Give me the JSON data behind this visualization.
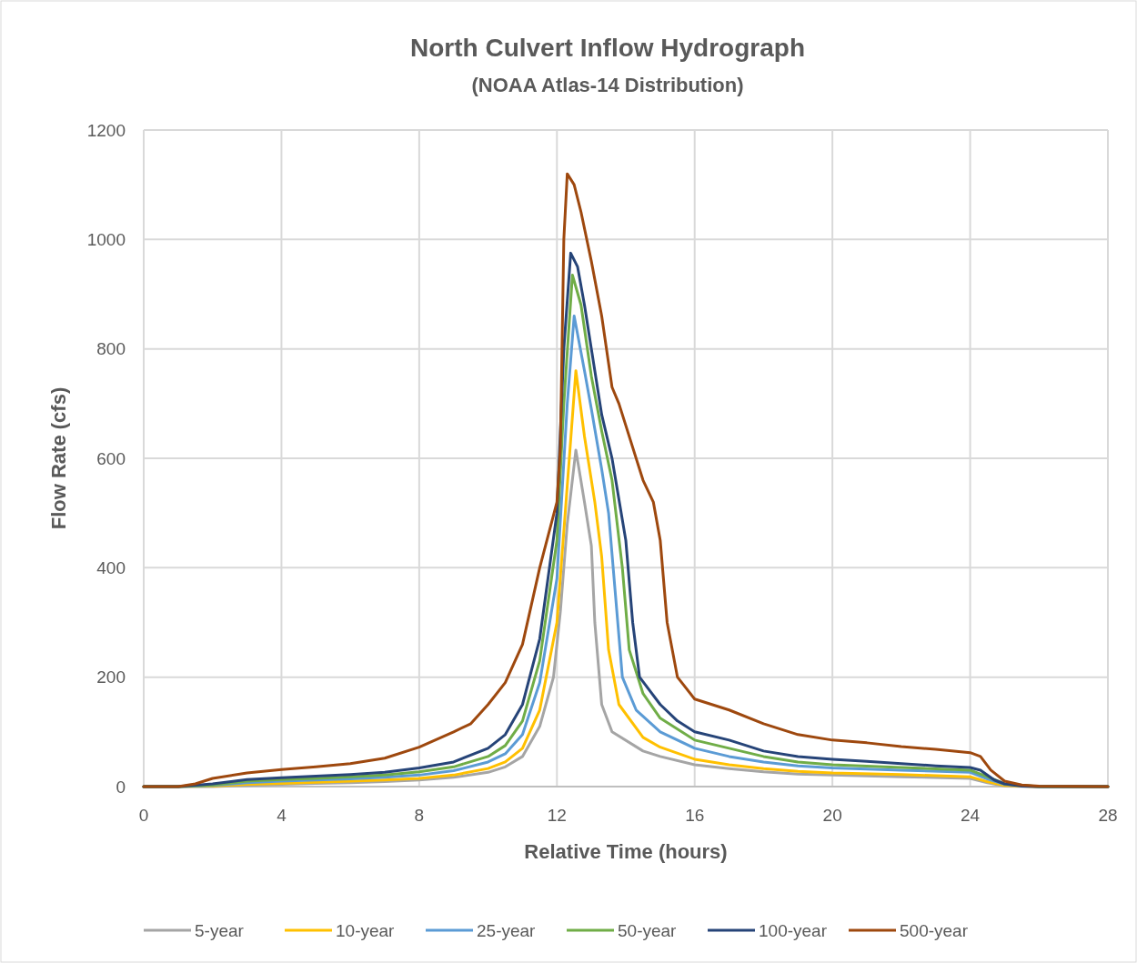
{
  "chart_data": {
    "type": "line",
    "title": "North Culvert Inflow Hydrograph",
    "subtitle": "(NOAA Atlas-14 Distribution)",
    "xlabel": "Relative Time (hours)",
    "ylabel": "Flow Rate (cfs)",
    "xlim": [
      0,
      28
    ],
    "xticks": [
      0,
      4,
      8,
      12,
      16,
      20,
      24,
      28
    ],
    "ylim": [
      0,
      1200
    ],
    "yticks": [
      0,
      200,
      400,
      600,
      800,
      1000,
      1200
    ],
    "grid": true,
    "legend": "bottom",
    "marker": "none",
    "line_style": "solid",
    "series": [
      {
        "name": "5-year",
        "color": "#a5a5a5",
        "x": [
          0,
          2,
          3,
          4,
          5,
          6,
          7,
          8,
          9,
          10,
          10.5,
          11,
          11.5,
          11.9,
          12.1,
          12.3,
          12.55,
          12.8,
          13,
          13.1,
          13.3,
          13.6,
          14.5,
          15,
          16,
          17,
          18,
          19,
          20,
          22,
          24,
          24.5,
          25,
          26,
          28
        ],
        "values": [
          0,
          0,
          2,
          4,
          6,
          7,
          9,
          12,
          17,
          26,
          36,
          55,
          110,
          200,
          320,
          480,
          615,
          520,
          440,
          300,
          150,
          100,
          65,
          55,
          40,
          33,
          27,
          23,
          21,
          18,
          15,
          7,
          1,
          0,
          0
        ]
      },
      {
        "name": "10-year",
        "color": "#ffc000",
        "x": [
          0,
          2,
          3,
          4,
          5,
          6,
          7,
          8,
          9,
          10,
          10.5,
          11,
          11.5,
          12,
          12.3,
          12.55,
          12.8,
          13.1,
          13.3,
          13.5,
          13.8,
          14.5,
          15,
          16,
          17,
          18,
          19,
          20,
          22,
          24,
          24.5,
          25,
          26,
          28
        ],
        "values": [
          0,
          1,
          4,
          6,
          8,
          10,
          12,
          15,
          21,
          33,
          45,
          70,
          140,
          300,
          550,
          760,
          640,
          520,
          420,
          250,
          150,
          90,
          72,
          50,
          40,
          33,
          28,
          25,
          22,
          18,
          9,
          2,
          0,
          0
        ]
      },
      {
        "name": "25-year",
        "color": "#5b9bd5",
        "x": [
          0,
          1,
          2,
          3,
          4,
          5,
          6,
          7,
          8,
          9,
          10,
          10.5,
          11,
          11.5,
          12,
          12.3,
          12.5,
          12.8,
          13,
          13.3,
          13.5,
          13.7,
          13.9,
          14.3,
          15,
          16,
          17,
          18,
          19,
          20,
          22,
          24,
          24.5,
          25,
          26,
          28
        ],
        "values": [
          0,
          0,
          2,
          7,
          10,
          12,
          14,
          17,
          21,
          29,
          45,
          60,
          95,
          190,
          380,
          700,
          860,
          760,
          690,
          580,
          500,
          350,
          200,
          140,
          100,
          70,
          55,
          45,
          38,
          34,
          30,
          26,
          14,
          4,
          0,
          0
        ]
      },
      {
        "name": "50-year",
        "color": "#70ad47",
        "x": [
          0,
          1,
          2,
          3,
          4,
          5,
          6,
          7,
          8,
          9,
          10,
          10.5,
          11,
          11.5,
          12,
          12.2,
          12.45,
          12.7,
          13,
          13.3,
          13.6,
          13.9,
          14.1,
          14.5,
          15,
          16,
          17,
          18,
          19,
          20,
          22,
          24,
          24.5,
          25,
          26,
          28
        ],
        "values": [
          0,
          0,
          3,
          10,
          13,
          15,
          18,
          21,
          27,
          36,
          55,
          75,
          120,
          230,
          450,
          700,
          935,
          880,
          750,
          650,
          560,
          400,
          250,
          170,
          125,
          85,
          70,
          55,
          45,
          40,
          35,
          30,
          18,
          5,
          0,
          0
        ]
      },
      {
        "name": "100-year",
        "color": "#264478",
        "x": [
          0,
          1,
          2,
          3,
          4,
          5,
          6,
          7,
          8,
          9,
          10,
          10.5,
          11,
          11.5,
          12,
          12.2,
          12.4,
          12.6,
          12.8,
          13,
          13.3,
          13.6,
          14,
          14.2,
          14.4,
          15,
          15.5,
          16,
          17,
          18,
          19,
          20,
          21,
          22,
          23,
          24,
          24.3,
          24.7,
          25,
          25.5,
          26,
          28
        ],
        "values": [
          0,
          0,
          5,
          13,
          16,
          19,
          22,
          26,
          34,
          45,
          70,
          95,
          150,
          270,
          500,
          800,
          975,
          950,
          880,
          800,
          680,
          600,
          450,
          300,
          200,
          150,
          120,
          100,
          85,
          65,
          55,
          50,
          46,
          42,
          38,
          35,
          30,
          12,
          5,
          1,
          0,
          0
        ]
      },
      {
        "name": "500-year",
        "color": "#9e480e",
        "x": [
          0,
          1,
          1.5,
          2,
          3,
          4,
          5,
          6,
          7,
          8,
          9,
          9.5,
          10,
          10.5,
          11,
          11.5,
          12,
          12.1,
          12.2,
          12.3,
          12.5,
          12.7,
          13,
          13.3,
          13.6,
          13.8,
          14,
          14.5,
          14.8,
          15,
          15.2,
          15.5,
          16,
          17,
          18,
          19,
          20,
          21,
          22,
          23,
          24,
          24.3,
          24.6,
          25,
          25.5,
          26,
          28
        ],
        "values": [
          0,
          0,
          5,
          15,
          25,
          31,
          36,
          42,
          52,
          72,
          100,
          115,
          150,
          190,
          260,
          400,
          520,
          620,
          1000,
          1120,
          1100,
          1050,
          960,
          860,
          730,
          700,
          660,
          560,
          520,
          450,
          300,
          200,
          160,
          140,
          115,
          95,
          85,
          80,
          73,
          68,
          62,
          55,
          30,
          10,
          3,
          1,
          0
        ]
      }
    ]
  }
}
